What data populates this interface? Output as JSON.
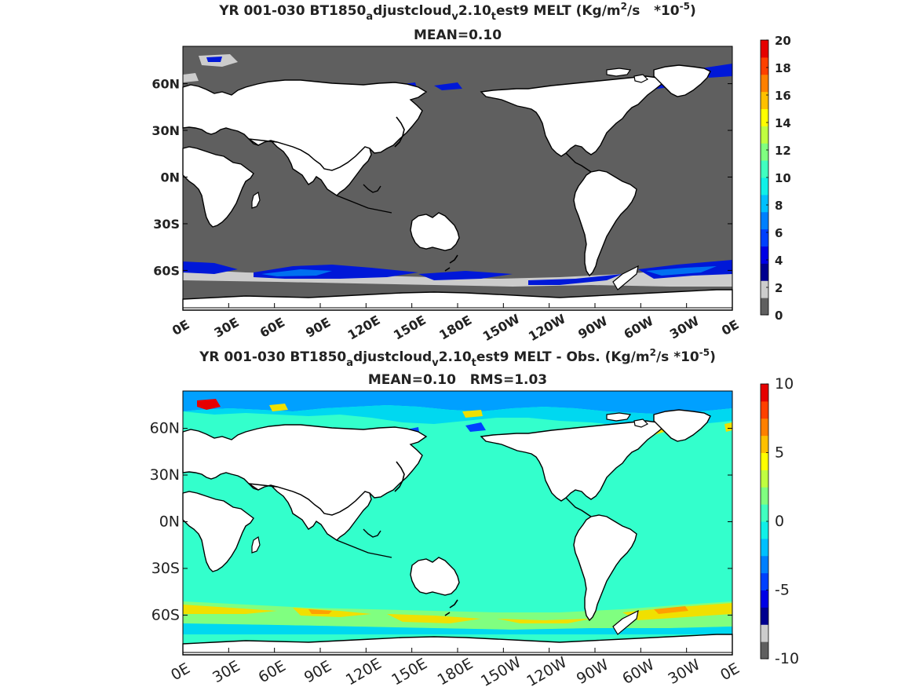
{
  "chart_data": [
    {
      "type": "heatmap",
      "title_parts": {
        "a": "YR 001-030 BT1850",
        "sub1": "a",
        "b": "djustcloud",
        "sub2": "v",
        "c": "2.10",
        "sub3": "t",
        "d": "est9 MELT (Kg/m",
        "sup1": "2",
        "e": "/s   *10",
        "sup2": "-5",
        "f": ")"
      },
      "subtitle": "MEAN=0.10",
      "x_ticks": [
        "0E",
        "30E",
        "60E",
        "90E",
        "120E",
        "150E",
        "180E",
        "150W",
        "120W",
        "90W",
        "60W",
        "30W",
        "0E"
      ],
      "y_ticks": [
        "60N",
        "30N",
        "0N",
        "30S",
        "60S"
      ],
      "y_tick_lat": [
        60,
        30,
        0,
        -30,
        -60
      ],
      "lon_range": [
        0,
        360
      ],
      "lat_range": [
        -84,
        84
      ],
      "colorbar": {
        "ticks": [
          "0",
          "2",
          "4",
          "6",
          "8",
          "10",
          "12",
          "14",
          "16",
          "18",
          "20"
        ],
        "range": [
          0,
          20
        ],
        "colors": [
          "#5f5f5f",
          "#cccccc",
          "#00008f",
          "#0000e6",
          "#0040ff",
          "#0080ff",
          "#00c0ff",
          "#10f0e8",
          "#40ffc0",
          "#80ff80",
          "#c0ff40",
          "#ffff00",
          "#ffc000",
          "#ff8000",
          "#ff4000",
          "#e60000"
        ]
      }
    },
    {
      "type": "heatmap",
      "title_parts": {
        "a": "YR 001-030 BT1850",
        "sub1": "a",
        "b": "djustcloud",
        "sub2": "v",
        "c": "2.10",
        "sub3": "t",
        "d": "est9 MELT - Obs. (Kg/m",
        "sup1": "2",
        "e": "/s *10",
        "sup2": "-5",
        "f": ")"
      },
      "subtitle": "MEAN=0.10   RMS=1.03",
      "x_ticks": [
        "0E",
        "30E",
        "60E",
        "90E",
        "120E",
        "150E",
        "180E",
        "150W",
        "120W",
        "90W",
        "60W",
        "30W",
        "0E"
      ],
      "y_ticks": [
        "60N",
        "30N",
        "0N",
        "30S",
        "60S"
      ],
      "y_tick_lat": [
        60,
        30,
        0,
        -30,
        -60
      ],
      "lon_range": [
        0,
        360
      ],
      "lat_range": [
        -84,
        84
      ],
      "colorbar": {
        "ticks": [
          "10",
          "5",
          "0",
          "-5",
          "-10"
        ],
        "range": [
          -10,
          10
        ],
        "colors": [
          "#5f5f5f",
          "#cccccc",
          "#00008f",
          "#0000e6",
          "#0040ff",
          "#0080ff",
          "#00c0ff",
          "#10f0e8",
          "#40ffc0",
          "#80ff80",
          "#c0ff40",
          "#ffff00",
          "#ffc000",
          "#ff8000",
          "#ff4000",
          "#e60000"
        ]
      }
    }
  ],
  "colors": {
    "ocean_top": "#5f5f5f",
    "ice_light": "#cccccc",
    "melt_blue": "#0018d8",
    "melt_red": "#e60000",
    "ocean_bottom": "#33ffcc",
    "diff_yellow": "#f0e000",
    "diff_blue": "#00a0ff",
    "land": "#ffffff"
  }
}
